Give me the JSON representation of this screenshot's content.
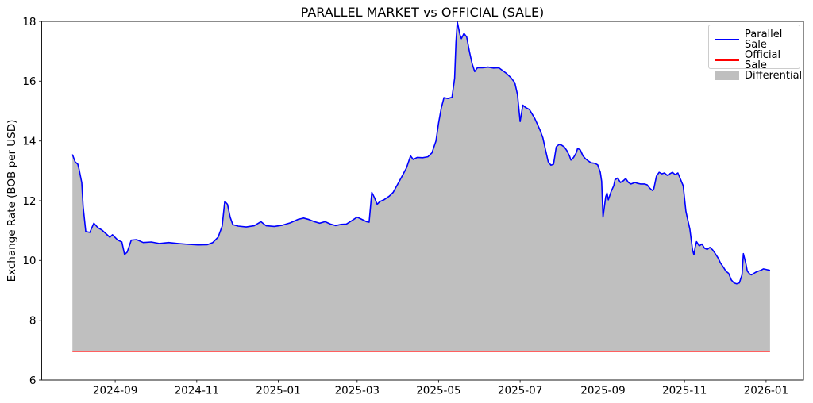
{
  "figure": {
    "title": "PARALLEL MARKET vs OFFICIAL (SALE)",
    "ylabel": "Exchange Rate (BOB per USD)"
  },
  "legend": {
    "items": [
      {
        "label": "Parallel Sale",
        "swatch": "line",
        "color": "#0000ff"
      },
      {
        "label": "Official Sale",
        "swatch": "line",
        "color": "#ff0000"
      },
      {
        "label": "Differential",
        "swatch": "patch",
        "color": "rgba(128,128,128,0.5)"
      }
    ]
  },
  "chart_data": {
    "type": "line",
    "title": "PARALLEL MARKET vs OFFICIAL (SALE)",
    "xlabel": "",
    "ylabel": "Exchange Rate (BOB per USD)",
    "ylim": [
      6,
      18
    ],
    "xlim": [
      "2024-07-08",
      "2026-01-29"
    ],
    "grid": false,
    "legend_position": "upper right",
    "y_ticks": [
      6,
      8,
      10,
      12,
      14,
      16,
      18
    ],
    "x_ticks": [
      {
        "date": "2024-09-01",
        "label": "2024-09"
      },
      {
        "date": "2024-11-01",
        "label": "2024-11"
      },
      {
        "date": "2025-01-01",
        "label": "2025-01"
      },
      {
        "date": "2025-03-01",
        "label": "2025-03"
      },
      {
        "date": "2025-05-01",
        "label": "2025-05"
      },
      {
        "date": "2025-07-01",
        "label": "2025-07"
      },
      {
        "date": "2025-09-01",
        "label": "2025-09"
      },
      {
        "date": "2025-11-01",
        "label": "2025-11"
      },
      {
        "date": "2026-01-01",
        "label": "2026-01"
      }
    ],
    "series": {
      "parallel": {
        "name": "Parallel Sale",
        "color": "#0000ff",
        "line_width": 1.6,
        "points": [
          [
            "2024-07-31",
            13.55
          ],
          [
            "2024-08-02",
            13.3
          ],
          [
            "2024-08-04",
            13.22
          ],
          [
            "2024-08-05",
            13.05
          ],
          [
            "2024-08-07",
            12.6
          ],
          [
            "2024-08-08",
            11.8
          ],
          [
            "2024-08-10",
            10.97
          ],
          [
            "2024-08-13",
            10.94
          ],
          [
            "2024-08-16",
            11.25
          ],
          [
            "2024-08-19",
            11.1
          ],
          [
            "2024-08-22",
            11.02
          ],
          [
            "2024-08-25",
            10.9
          ],
          [
            "2024-08-28",
            10.78
          ],
          [
            "2024-08-30",
            10.86
          ],
          [
            "2024-09-03",
            10.68
          ],
          [
            "2024-09-06",
            10.62
          ],
          [
            "2024-09-08",
            10.2
          ],
          [
            "2024-09-10",
            10.28
          ],
          [
            "2024-09-13",
            10.68
          ],
          [
            "2024-09-17",
            10.7
          ],
          [
            "2024-09-22",
            10.6
          ],
          [
            "2024-09-28",
            10.62
          ],
          [
            "2024-10-04",
            10.57
          ],
          [
            "2024-10-11",
            10.6
          ],
          [
            "2024-10-18",
            10.57
          ],
          [
            "2024-10-26",
            10.54
          ],
          [
            "2024-11-02",
            10.52
          ],
          [
            "2024-11-09",
            10.53
          ],
          [
            "2024-11-13",
            10.6
          ],
          [
            "2024-11-17",
            10.78
          ],
          [
            "2024-11-20",
            11.15
          ],
          [
            "2024-11-22",
            11.98
          ],
          [
            "2024-11-24",
            11.88
          ],
          [
            "2024-11-26",
            11.45
          ],
          [
            "2024-11-28",
            11.2
          ],
          [
            "2024-12-02",
            11.15
          ],
          [
            "2024-12-08",
            11.12
          ],
          [
            "2024-12-14",
            11.16
          ],
          [
            "2024-12-19",
            11.3
          ],
          [
            "2024-12-23",
            11.16
          ],
          [
            "2024-12-29",
            11.14
          ],
          [
            "2025-01-04",
            11.18
          ],
          [
            "2025-01-10",
            11.26
          ],
          [
            "2025-01-16",
            11.38
          ],
          [
            "2025-01-20",
            11.42
          ],
          [
            "2025-01-24",
            11.37
          ],
          [
            "2025-01-28",
            11.3
          ],
          [
            "2025-02-01",
            11.25
          ],
          [
            "2025-02-05",
            11.3
          ],
          [
            "2025-02-09",
            11.22
          ],
          [
            "2025-02-13",
            11.17
          ],
          [
            "2025-02-17",
            11.21
          ],
          [
            "2025-02-21",
            11.22
          ],
          [
            "2025-02-25",
            11.33
          ],
          [
            "2025-03-01",
            11.45
          ],
          [
            "2025-03-04",
            11.39
          ],
          [
            "2025-03-08",
            11.3
          ],
          [
            "2025-03-10",
            11.28
          ],
          [
            "2025-03-12",
            12.28
          ],
          [
            "2025-03-14",
            12.1
          ],
          [
            "2025-03-16",
            11.88
          ],
          [
            "2025-03-18",
            11.97
          ],
          [
            "2025-03-21",
            12.03
          ],
          [
            "2025-03-25",
            12.15
          ],
          [
            "2025-03-28",
            12.28
          ],
          [
            "2025-04-01",
            12.6
          ],
          [
            "2025-04-04",
            12.85
          ],
          [
            "2025-04-07",
            13.1
          ],
          [
            "2025-04-10",
            13.5
          ],
          [
            "2025-04-12",
            13.38
          ],
          [
            "2025-04-15",
            13.45
          ],
          [
            "2025-04-19",
            13.44
          ],
          [
            "2025-04-23",
            13.47
          ],
          [
            "2025-04-26",
            13.6
          ],
          [
            "2025-04-29",
            14.0
          ],
          [
            "2025-05-01",
            14.6
          ],
          [
            "2025-05-03",
            15.1
          ],
          [
            "2025-05-05",
            15.45
          ],
          [
            "2025-05-08",
            15.42
          ],
          [
            "2025-05-11",
            15.46
          ],
          [
            "2025-05-13",
            16.1
          ],
          [
            "2025-05-14",
            17.3
          ],
          [
            "2025-05-15",
            17.98
          ],
          [
            "2025-05-17",
            17.55
          ],
          [
            "2025-05-18",
            17.42
          ],
          [
            "2025-05-20",
            17.6
          ],
          [
            "2025-05-22",
            17.48
          ],
          [
            "2025-05-24",
            17.0
          ],
          [
            "2025-05-26",
            16.6
          ],
          [
            "2025-05-28",
            16.32
          ],
          [
            "2025-05-30",
            16.45
          ],
          [
            "2025-06-03",
            16.45
          ],
          [
            "2025-06-07",
            16.47
          ],
          [
            "2025-06-11",
            16.44
          ],
          [
            "2025-06-15",
            16.45
          ],
          [
            "2025-06-18",
            16.35
          ],
          [
            "2025-06-21",
            16.25
          ],
          [
            "2025-06-24",
            16.12
          ],
          [
            "2025-06-27",
            15.95
          ],
          [
            "2025-06-29",
            15.55
          ],
          [
            "2025-07-01",
            14.65
          ],
          [
            "2025-07-03",
            15.2
          ],
          [
            "2025-07-05",
            15.12
          ],
          [
            "2025-07-08",
            15.05
          ],
          [
            "2025-07-10",
            14.9
          ],
          [
            "2025-07-12",
            14.75
          ],
          [
            "2025-07-14",
            14.55
          ],
          [
            "2025-07-16",
            14.35
          ],
          [
            "2025-07-18",
            14.1
          ],
          [
            "2025-07-20",
            13.7
          ],
          [
            "2025-07-22",
            13.3
          ],
          [
            "2025-07-24",
            13.19
          ],
          [
            "2025-07-26",
            13.22
          ],
          [
            "2025-07-28",
            13.8
          ],
          [
            "2025-07-30",
            13.88
          ],
          [
            "2025-08-01",
            13.86
          ],
          [
            "2025-08-03",
            13.8
          ],
          [
            "2025-08-05",
            13.67
          ],
          [
            "2025-08-07",
            13.49
          ],
          [
            "2025-08-08",
            13.36
          ],
          [
            "2025-08-10",
            13.45
          ],
          [
            "2025-08-12",
            13.6
          ],
          [
            "2025-08-13",
            13.75
          ],
          [
            "2025-08-15",
            13.7
          ],
          [
            "2025-08-17",
            13.5
          ],
          [
            "2025-08-19",
            13.4
          ],
          [
            "2025-08-21",
            13.33
          ],
          [
            "2025-08-23",
            13.27
          ],
          [
            "2025-08-26",
            13.25
          ],
          [
            "2025-08-28",
            13.2
          ],
          [
            "2025-08-30",
            12.95
          ],
          [
            "2025-08-31",
            12.65
          ],
          [
            "2025-09-01",
            11.45
          ],
          [
            "2025-09-03",
            12.13
          ],
          [
            "2025-09-04",
            12.26
          ],
          [
            "2025-09-05",
            12.03
          ],
          [
            "2025-09-07",
            12.3
          ],
          [
            "2025-09-09",
            12.5
          ],
          [
            "2025-09-10",
            12.7
          ],
          [
            "2025-09-12",
            12.76
          ],
          [
            "2025-09-14",
            12.61
          ],
          [
            "2025-09-16",
            12.66
          ],
          [
            "2025-09-18",
            12.74
          ],
          [
            "2025-09-20",
            12.61
          ],
          [
            "2025-09-22",
            12.56
          ],
          [
            "2025-09-25",
            12.61
          ],
          [
            "2025-09-27",
            12.58
          ],
          [
            "2025-09-29",
            12.56
          ],
          [
            "2025-10-02",
            12.56
          ],
          [
            "2025-10-04",
            12.53
          ],
          [
            "2025-10-06",
            12.42
          ],
          [
            "2025-10-08",
            12.34
          ],
          [
            "2025-10-09",
            12.4
          ],
          [
            "2025-10-11",
            12.82
          ],
          [
            "2025-10-13",
            12.95
          ],
          [
            "2025-10-15",
            12.9
          ],
          [
            "2025-10-17",
            12.93
          ],
          [
            "2025-10-19",
            12.85
          ],
          [
            "2025-10-21",
            12.9
          ],
          [
            "2025-10-23",
            12.95
          ],
          [
            "2025-10-25",
            12.87
          ],
          [
            "2025-10-27",
            12.93
          ],
          [
            "2025-10-29",
            12.72
          ],
          [
            "2025-10-31",
            12.5
          ],
          [
            "2025-11-02",
            11.65
          ],
          [
            "2025-11-03",
            11.45
          ],
          [
            "2025-11-05",
            11.05
          ],
          [
            "2025-11-06",
            10.7
          ],
          [
            "2025-11-07",
            10.35
          ],
          [
            "2025-11-08",
            10.19
          ],
          [
            "2025-11-09",
            10.45
          ],
          [
            "2025-11-10",
            10.63
          ],
          [
            "2025-11-12",
            10.49
          ],
          [
            "2025-11-14",
            10.55
          ],
          [
            "2025-11-16",
            10.41
          ],
          [
            "2025-11-18",
            10.37
          ],
          [
            "2025-11-20",
            10.44
          ],
          [
            "2025-11-22",
            10.36
          ],
          [
            "2025-11-24",
            10.23
          ],
          [
            "2025-11-26",
            10.09
          ],
          [
            "2025-11-28",
            9.91
          ],
          [
            "2025-11-30",
            9.78
          ],
          [
            "2025-12-02",
            9.64
          ],
          [
            "2025-12-04",
            9.57
          ],
          [
            "2025-12-06",
            9.35
          ],
          [
            "2025-12-08",
            9.25
          ],
          [
            "2025-12-10",
            9.22
          ],
          [
            "2025-12-12",
            9.25
          ],
          [
            "2025-12-14",
            9.52
          ],
          [
            "2025-12-15",
            10.23
          ],
          [
            "2025-12-17",
            9.88
          ],
          [
            "2025-12-18",
            9.64
          ],
          [
            "2025-12-20",
            9.54
          ],
          [
            "2025-12-21",
            9.52
          ],
          [
            "2025-12-24",
            9.6
          ],
          [
            "2025-12-26",
            9.64
          ],
          [
            "2025-12-28",
            9.67
          ],
          [
            "2025-12-30",
            9.72
          ],
          [
            "2026-01-01",
            9.7
          ],
          [
            "2026-01-04",
            9.67
          ]
        ]
      },
      "official": {
        "name": "Official Sale",
        "color": "#ff0000",
        "line_width": 1.6,
        "value": 6.96,
        "start": "2024-07-31",
        "end": "2026-01-04"
      },
      "differential": {
        "name": "Differential",
        "fill_color": "rgba(128,128,128,0.5)",
        "description": "Shaded area between Parallel Sale and Official Sale"
      }
    }
  }
}
